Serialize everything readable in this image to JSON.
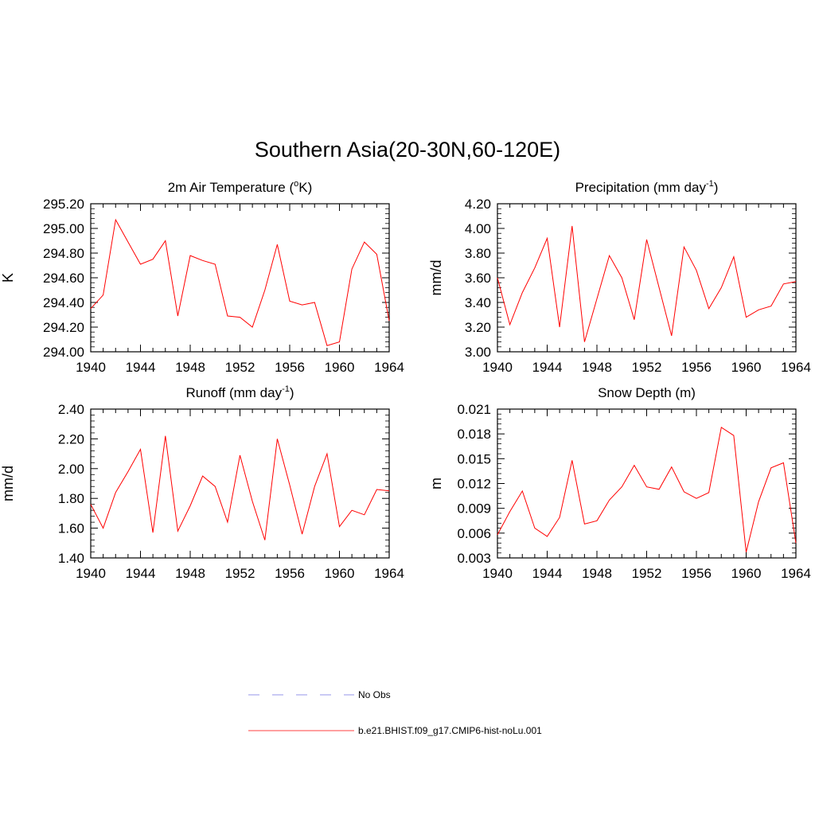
{
  "title": "Southern Asia(20-30N,60-120E)",
  "chart_data": [
    {
      "type": "line",
      "title": "2m Air Temperature (°K)",
      "title_parts": [
        "2m Air Temperature (",
        "o",
        "K)"
      ],
      "ylabel": "K",
      "x": [
        1940,
        1941,
        1942,
        1943,
        1944,
        1945,
        1946,
        1947,
        1948,
        1949,
        1950,
        1951,
        1952,
        1953,
        1954,
        1955,
        1956,
        1957,
        1958,
        1959,
        1960,
        1961,
        1962,
        1963,
        1964
      ],
      "ylim": [
        294.0,
        295.2
      ],
      "yticks": [
        294.0,
        294.2,
        294.4,
        294.6,
        294.8,
        295.0,
        295.2
      ],
      "ytick_labels": [
        "294.00",
        "294.20",
        "294.40",
        "294.60",
        "294.80",
        "295.00",
        "295.20"
      ],
      "xticks": [
        1940,
        1944,
        1948,
        1952,
        1956,
        1960,
        1964
      ],
      "xtick_labels": [
        "1940",
        "1944",
        "1948",
        "1952",
        "1956",
        "1960",
        "1964"
      ],
      "series": [
        {
          "name": "b.e21.BHIST.f09_g17.CMIP6-hist-noLu.001",
          "color": "#ff0000",
          "values": [
            294.35,
            294.46,
            295.07,
            294.89,
            294.71,
            294.75,
            294.9,
            294.29,
            294.78,
            294.74,
            294.71,
            294.29,
            294.28,
            294.2,
            294.5,
            294.87,
            294.41,
            294.38,
            294.4,
            294.05,
            294.08,
            294.67,
            294.89,
            294.79,
            294.25
          ]
        }
      ]
    },
    {
      "type": "line",
      "title": "Precipitation (mm day-1)",
      "title_parts": [
        "Precipitation (mm day",
        "-1",
        ")"
      ],
      "ylabel": "mm/d",
      "x": [
        1940,
        1941,
        1942,
        1943,
        1944,
        1945,
        1946,
        1947,
        1948,
        1949,
        1950,
        1951,
        1952,
        1953,
        1954,
        1955,
        1956,
        1957,
        1958,
        1959,
        1960,
        1961,
        1962,
        1963,
        1964
      ],
      "ylim": [
        3.0,
        4.2
      ],
      "yticks": [
        3.0,
        3.2,
        3.4,
        3.6,
        3.8,
        4.0,
        4.2
      ],
      "ytick_labels": [
        "3.00",
        "3.20",
        "3.40",
        "3.60",
        "3.80",
        "4.00",
        "4.20"
      ],
      "xticks": [
        1940,
        1944,
        1948,
        1952,
        1956,
        1960,
        1964
      ],
      "xtick_labels": [
        "1940",
        "1944",
        "1948",
        "1952",
        "1956",
        "1960",
        "1964"
      ],
      "series": [
        {
          "name": "b.e21.BHIST.f09_g17.CMIP6-hist-noLu.001",
          "color": "#ff0000",
          "values": [
            3.6,
            3.22,
            3.48,
            3.68,
            3.92,
            3.2,
            4.02,
            3.08,
            3.43,
            3.78,
            3.6,
            3.26,
            3.91,
            3.52,
            3.13,
            3.85,
            3.66,
            3.35,
            3.52,
            3.77,
            3.28,
            3.34,
            3.37,
            3.55,
            3.57
          ]
        }
      ]
    },
    {
      "type": "line",
      "title": "Runoff (mm day-1)",
      "title_parts": [
        "Runoff (mm day",
        "-1",
        ")"
      ],
      "ylabel": "mm/d",
      "x": [
        1940,
        1941,
        1942,
        1943,
        1944,
        1945,
        1946,
        1947,
        1948,
        1949,
        1950,
        1951,
        1952,
        1953,
        1954,
        1955,
        1956,
        1957,
        1958,
        1959,
        1960,
        1961,
        1962,
        1963,
        1964
      ],
      "ylim": [
        1.4,
        2.4
      ],
      "yticks": [
        1.4,
        1.6,
        1.8,
        2.0,
        2.2,
        2.4
      ],
      "ytick_labels": [
        "1.40",
        "1.60",
        "1.80",
        "2.00",
        "2.20",
        "2.40"
      ],
      "xticks": [
        1940,
        1944,
        1948,
        1952,
        1956,
        1960,
        1964
      ],
      "xtick_labels": [
        "1940",
        "1944",
        "1948",
        "1952",
        "1956",
        "1960",
        "1964"
      ],
      "series": [
        {
          "name": "b.e21.BHIST.f09_g17.CMIP6-hist-noLu.001",
          "color": "#ff0000",
          "values": [
            1.76,
            1.6,
            1.84,
            1.98,
            2.13,
            1.57,
            2.22,
            1.58,
            1.75,
            1.95,
            1.88,
            1.64,
            2.09,
            1.78,
            1.52,
            2.2,
            1.89,
            1.56,
            1.88,
            2.1,
            1.61,
            1.72,
            1.69,
            1.86,
            1.85
          ]
        }
      ]
    },
    {
      "type": "line",
      "title": "Snow Depth (m)",
      "title_parts": [
        "Snow Depth (m)",
        "",
        ""
      ],
      "ylabel": "m",
      "x": [
        1940,
        1941,
        1942,
        1943,
        1944,
        1945,
        1946,
        1947,
        1948,
        1949,
        1950,
        1951,
        1952,
        1953,
        1954,
        1955,
        1956,
        1957,
        1958,
        1959,
        1960,
        1961,
        1962,
        1963,
        1964
      ],
      "ylim": [
        0.003,
        0.021
      ],
      "yticks": [
        0.003,
        0.006,
        0.009,
        0.012,
        0.015,
        0.018,
        0.021
      ],
      "ytick_labels": [
        "0.003",
        "0.006",
        "0.009",
        "0.012",
        "0.015",
        "0.018",
        "0.021"
      ],
      "xticks": [
        1940,
        1944,
        1948,
        1952,
        1956,
        1960,
        1964
      ],
      "xtick_labels": [
        "1940",
        "1944",
        "1948",
        "1952",
        "1956",
        "1960",
        "1964"
      ],
      "series": [
        {
          "name": "b.e21.BHIST.f09_g17.CMIP6-hist-noLu.001",
          "color": "#ff0000",
          "values": [
            0.0058,
            0.0086,
            0.0111,
            0.0066,
            0.0056,
            0.0079,
            0.0148,
            0.0071,
            0.0075,
            0.01,
            0.0116,
            0.0142,
            0.0116,
            0.0113,
            0.014,
            0.011,
            0.0102,
            0.0109,
            0.0188,
            0.0178,
            0.0037,
            0.0098,
            0.0139,
            0.0145,
            0.0048
          ]
        }
      ]
    }
  ],
  "legend": [
    {
      "label": "No Obs",
      "style": "dashed",
      "color": "#aaaaee"
    },
    {
      "label": "b.e21.BHIST.f09_g17.CMIP6-hist-noLu.001",
      "style": "solid",
      "color": "#ff0000"
    }
  ]
}
